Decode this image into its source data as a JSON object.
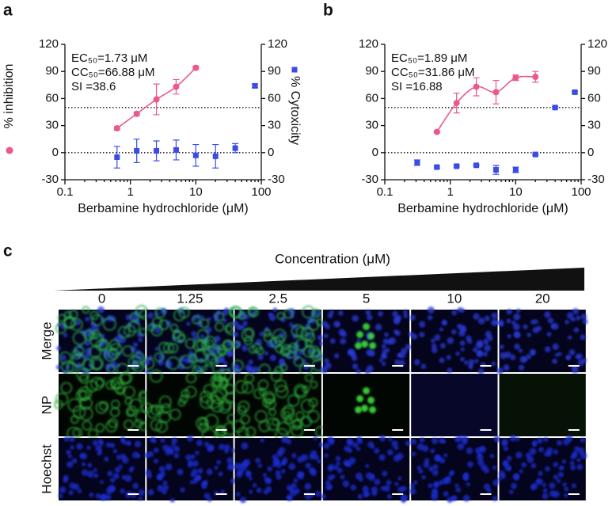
{
  "chart_data": [
    {
      "type": "scatter",
      "label": "a",
      "xscale": "log",
      "xlabel": "Berbamine hydrochloride (μM)",
      "xlim": [
        0.1,
        100
      ],
      "xticks": [
        0.1,
        1,
        10,
        100
      ],
      "ylim": [
        -30,
        120
      ],
      "yticks": [
        -30,
        0,
        30,
        60,
        90,
        120
      ],
      "y2lim": [
        -30,
        120
      ],
      "y2ticks": [
        -30,
        0,
        30,
        60,
        90,
        120
      ],
      "reference_lines": [
        50,
        0
      ],
      "legend_markers": true,
      "annotations": [
        "EC₅₀=1.73 μM",
        "CC₅₀=66.88 μM",
        "SI =38.6"
      ],
      "series": [
        {
          "name": "% inhibition",
          "color": "#ea5a86",
          "marker": "circle",
          "axis": "y",
          "line": true,
          "x": [
            0.625,
            1.25,
            2.5,
            5,
            10
          ],
          "values": [
            27,
            43,
            59,
            73,
            94
          ],
          "errors": [
            2,
            2,
            17,
            8,
            2
          ]
        },
        {
          "name": "% Cytoxicity",
          "color": "#3a4be8",
          "marker": "square",
          "axis": "y2",
          "line": false,
          "x": [
            0.625,
            1.25,
            2.5,
            5,
            10,
            20,
            40,
            80
          ],
          "values": [
            -5,
            2,
            2,
            3,
            -3,
            -4,
            5,
            74
          ],
          "errors": [
            12,
            13,
            11,
            11,
            12,
            13,
            5,
            2
          ]
        }
      ]
    },
    {
      "type": "scatter",
      "label": "b",
      "xscale": "log",
      "xlabel": "Berbamine hydrochloride (μM)",
      "xlim": [
        0.1,
        100
      ],
      "xticks": [
        0.1,
        1,
        10,
        100
      ],
      "ylim": [
        -30,
        120
      ],
      "yticks": [
        -30,
        0,
        30,
        60,
        90,
        120
      ],
      "y2lim": [
        -30,
        120
      ],
      "y2ticks": [
        -30,
        0,
        30,
        60,
        90,
        120
      ],
      "reference_lines": [
        50,
        0
      ],
      "legend_markers": false,
      "annotations": [
        "EC₅₀=1.89 μM",
        "CC₅₀=31.86 μM",
        "SI =16.88"
      ],
      "series": [
        {
          "color": "#ea5a86",
          "marker": "circle",
          "axis": "y",
          "line": true,
          "x": [
            0.625,
            1.25,
            2.5,
            5,
            10,
            20
          ],
          "values": [
            23,
            55,
            73,
            67,
            83,
            84
          ],
          "errors": [
            1,
            11,
            10,
            13,
            3,
            6
          ]
        },
        {
          "color": "#3a4be8",
          "marker": "square",
          "axis": "y2",
          "line": false,
          "x": [
            0.3125,
            0.625,
            1.25,
            2.5,
            5,
            10,
            20,
            40,
            80
          ],
          "values": [
            -11,
            -16,
            -15,
            -14,
            -19,
            -19,
            -2,
            50,
            67
          ],
          "errors": [
            3,
            1,
            1,
            1,
            5,
            3,
            1,
            1,
            1
          ]
        }
      ]
    }
  ],
  "panel_c": {
    "label": "c",
    "title": "Concentration (μM)",
    "columns": [
      "0",
      "1.25",
      "2.5",
      "5",
      "10",
      "20"
    ],
    "rows": [
      "Merge",
      "NP",
      "Hoechst"
    ]
  }
}
